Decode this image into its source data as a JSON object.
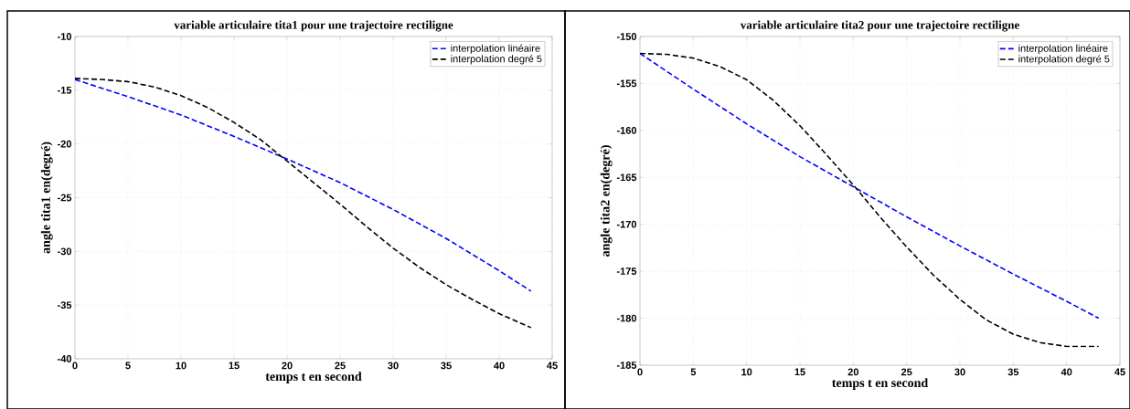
{
  "chart_data": [
    {
      "type": "line",
      "title": "variable articulaire tita1 pour une trajectoire rectiligne",
      "xlabel": "temps t en second",
      "ylabel": "angle  tita1 en(degré)",
      "xlim": [
        0,
        45
      ],
      "ylim": [
        -40,
        -10
      ],
      "xticks": [
        0,
        5,
        10,
        15,
        20,
        25,
        30,
        35,
        40,
        45
      ],
      "yticks": [
        -40,
        -35,
        -30,
        -25,
        -20,
        -15,
        -10
      ],
      "grid": true,
      "legend": "top right",
      "line_style": "dashed",
      "series": [
        {
          "name": "interpolation linéaire",
          "color": "#0000ff",
          "x": [
            0,
            5,
            10,
            15,
            20,
            25,
            30,
            35,
            40,
            43
          ],
          "values": [
            -14,
            -15.6,
            -17.3,
            -19.3,
            -21.4,
            -23.6,
            -26.1,
            -28.8,
            -31.8,
            -33.7
          ]
        },
        {
          "name": "interpolation degré 5",
          "color": "#000000",
          "x": [
            0,
            2.5,
            5,
            7.5,
            10,
            12.5,
            15,
            17.5,
            20,
            22.5,
            25,
            27.5,
            30,
            32.5,
            35,
            37.5,
            40,
            43
          ],
          "values": [
            -13.9,
            -14.0,
            -14.2,
            -14.7,
            -15.5,
            -16.6,
            -18.0,
            -19.6,
            -21.6,
            -23.6,
            -25.6,
            -27.7,
            -29.7,
            -31.5,
            -33.1,
            -34.5,
            -35.8,
            -37.1
          ]
        }
      ]
    },
    {
      "type": "line",
      "title": "variable articulaire tita2 pour une trajectoire rectiligne",
      "xlabel": "temps t en second",
      "ylabel": "angle  tita2 en(degré)",
      "xlim": [
        0,
        45
      ],
      "ylim": [
        -185,
        -150
      ],
      "xticks": [
        0,
        5,
        10,
        15,
        20,
        25,
        30,
        35,
        40,
        45
      ],
      "yticks": [
        -185,
        -180,
        -175,
        -170,
        -165,
        -160,
        -155,
        -150
      ],
      "grid": true,
      "legend": "top right",
      "line_style": "dashed",
      "series": [
        {
          "name": "interpolation linéaire",
          "color": "#0000ff",
          "x": [
            0,
            5,
            10,
            15,
            20,
            25,
            30,
            35,
            40,
            43
          ],
          "values": [
            -151.8,
            -155.6,
            -159.3,
            -162.8,
            -166.0,
            -169.2,
            -172.3,
            -175.3,
            -178.2,
            -180.0
          ]
        },
        {
          "name": "interpolation degré 5",
          "color": "#000000",
          "x": [
            0,
            2.5,
            5,
            7.5,
            10,
            12.5,
            15,
            17.5,
            20,
            22.5,
            25,
            27.5,
            30,
            32.5,
            35,
            37.5,
            40,
            43
          ],
          "values": [
            -151.8,
            -151.9,
            -152.3,
            -153.2,
            -154.6,
            -156.8,
            -159.5,
            -162.6,
            -165.8,
            -169.2,
            -172.4,
            -175.4,
            -178.0,
            -180.2,
            -181.7,
            -182.6,
            -183.0,
            -183.0
          ]
        }
      ]
    }
  ]
}
